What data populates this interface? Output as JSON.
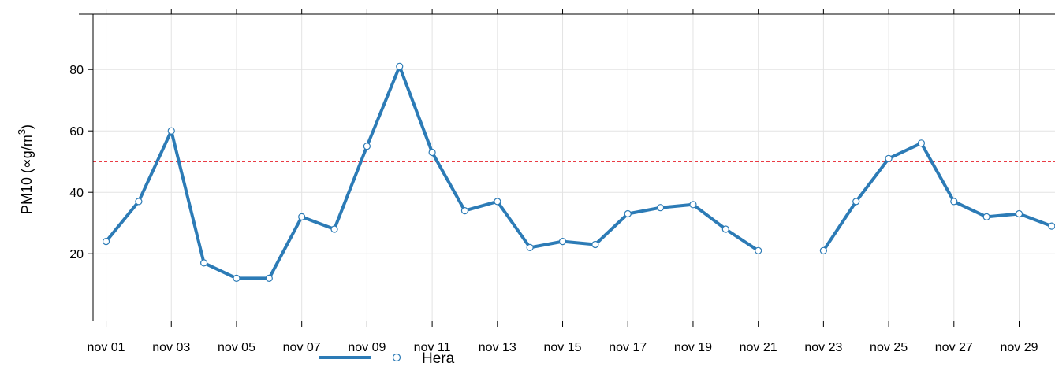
{
  "chart_data": {
    "type": "line",
    "ylabel": "PM10 (∝g/m³)",
    "ylabel_parts": {
      "main": "PM10 (",
      "unit": "∝g/m",
      "sup": "3",
      "close": ")"
    },
    "xlim": [
      0.6,
      30.1
    ],
    "ylim": [
      -2,
      98
    ],
    "y_ticks": [
      20,
      40,
      60,
      80
    ],
    "x_ticks": [
      {
        "day": 1,
        "label": "nov 01"
      },
      {
        "day": 3,
        "label": "nov 03"
      },
      {
        "day": 5,
        "label": "nov 05"
      },
      {
        "day": 7,
        "label": "nov 07"
      },
      {
        "day": 9,
        "label": "nov 09"
      },
      {
        "day": 11,
        "label": "nov 11"
      },
      {
        "day": 13,
        "label": "nov 13"
      },
      {
        "day": 15,
        "label": "nov 15"
      },
      {
        "day": 17,
        "label": "nov 17"
      },
      {
        "day": 19,
        "label": "nov 19"
      },
      {
        "day": 21,
        "label": "nov 21"
      },
      {
        "day": 23,
        "label": "nov 23"
      },
      {
        "day": 25,
        "label": "nov 25"
      },
      {
        "day": 27,
        "label": "nov 27"
      },
      {
        "day": 29,
        "label": "nov 29"
      }
    ],
    "threshold": {
      "value": 50,
      "color": "#e8202a",
      "style": "dashed"
    },
    "grid": true,
    "legend_position": "bottom",
    "series": [
      {
        "name": "Hera",
        "color": "#2c7bb6",
        "x": [
          1,
          2,
          3,
          4,
          5,
          6,
          7,
          8,
          9,
          10,
          11,
          12,
          13,
          14,
          15,
          16,
          17,
          18,
          19,
          20,
          21,
          22,
          23,
          24,
          25,
          26,
          27,
          28,
          29,
          30
        ],
        "values": [
          24,
          37,
          60,
          17,
          12,
          12,
          32,
          28,
          55,
          81,
          53,
          34,
          37,
          22,
          24,
          23,
          33,
          35,
          36,
          28,
          21,
          null,
          21,
          37,
          51,
          56,
          37,
          32,
          33,
          29
        ]
      }
    ]
  }
}
